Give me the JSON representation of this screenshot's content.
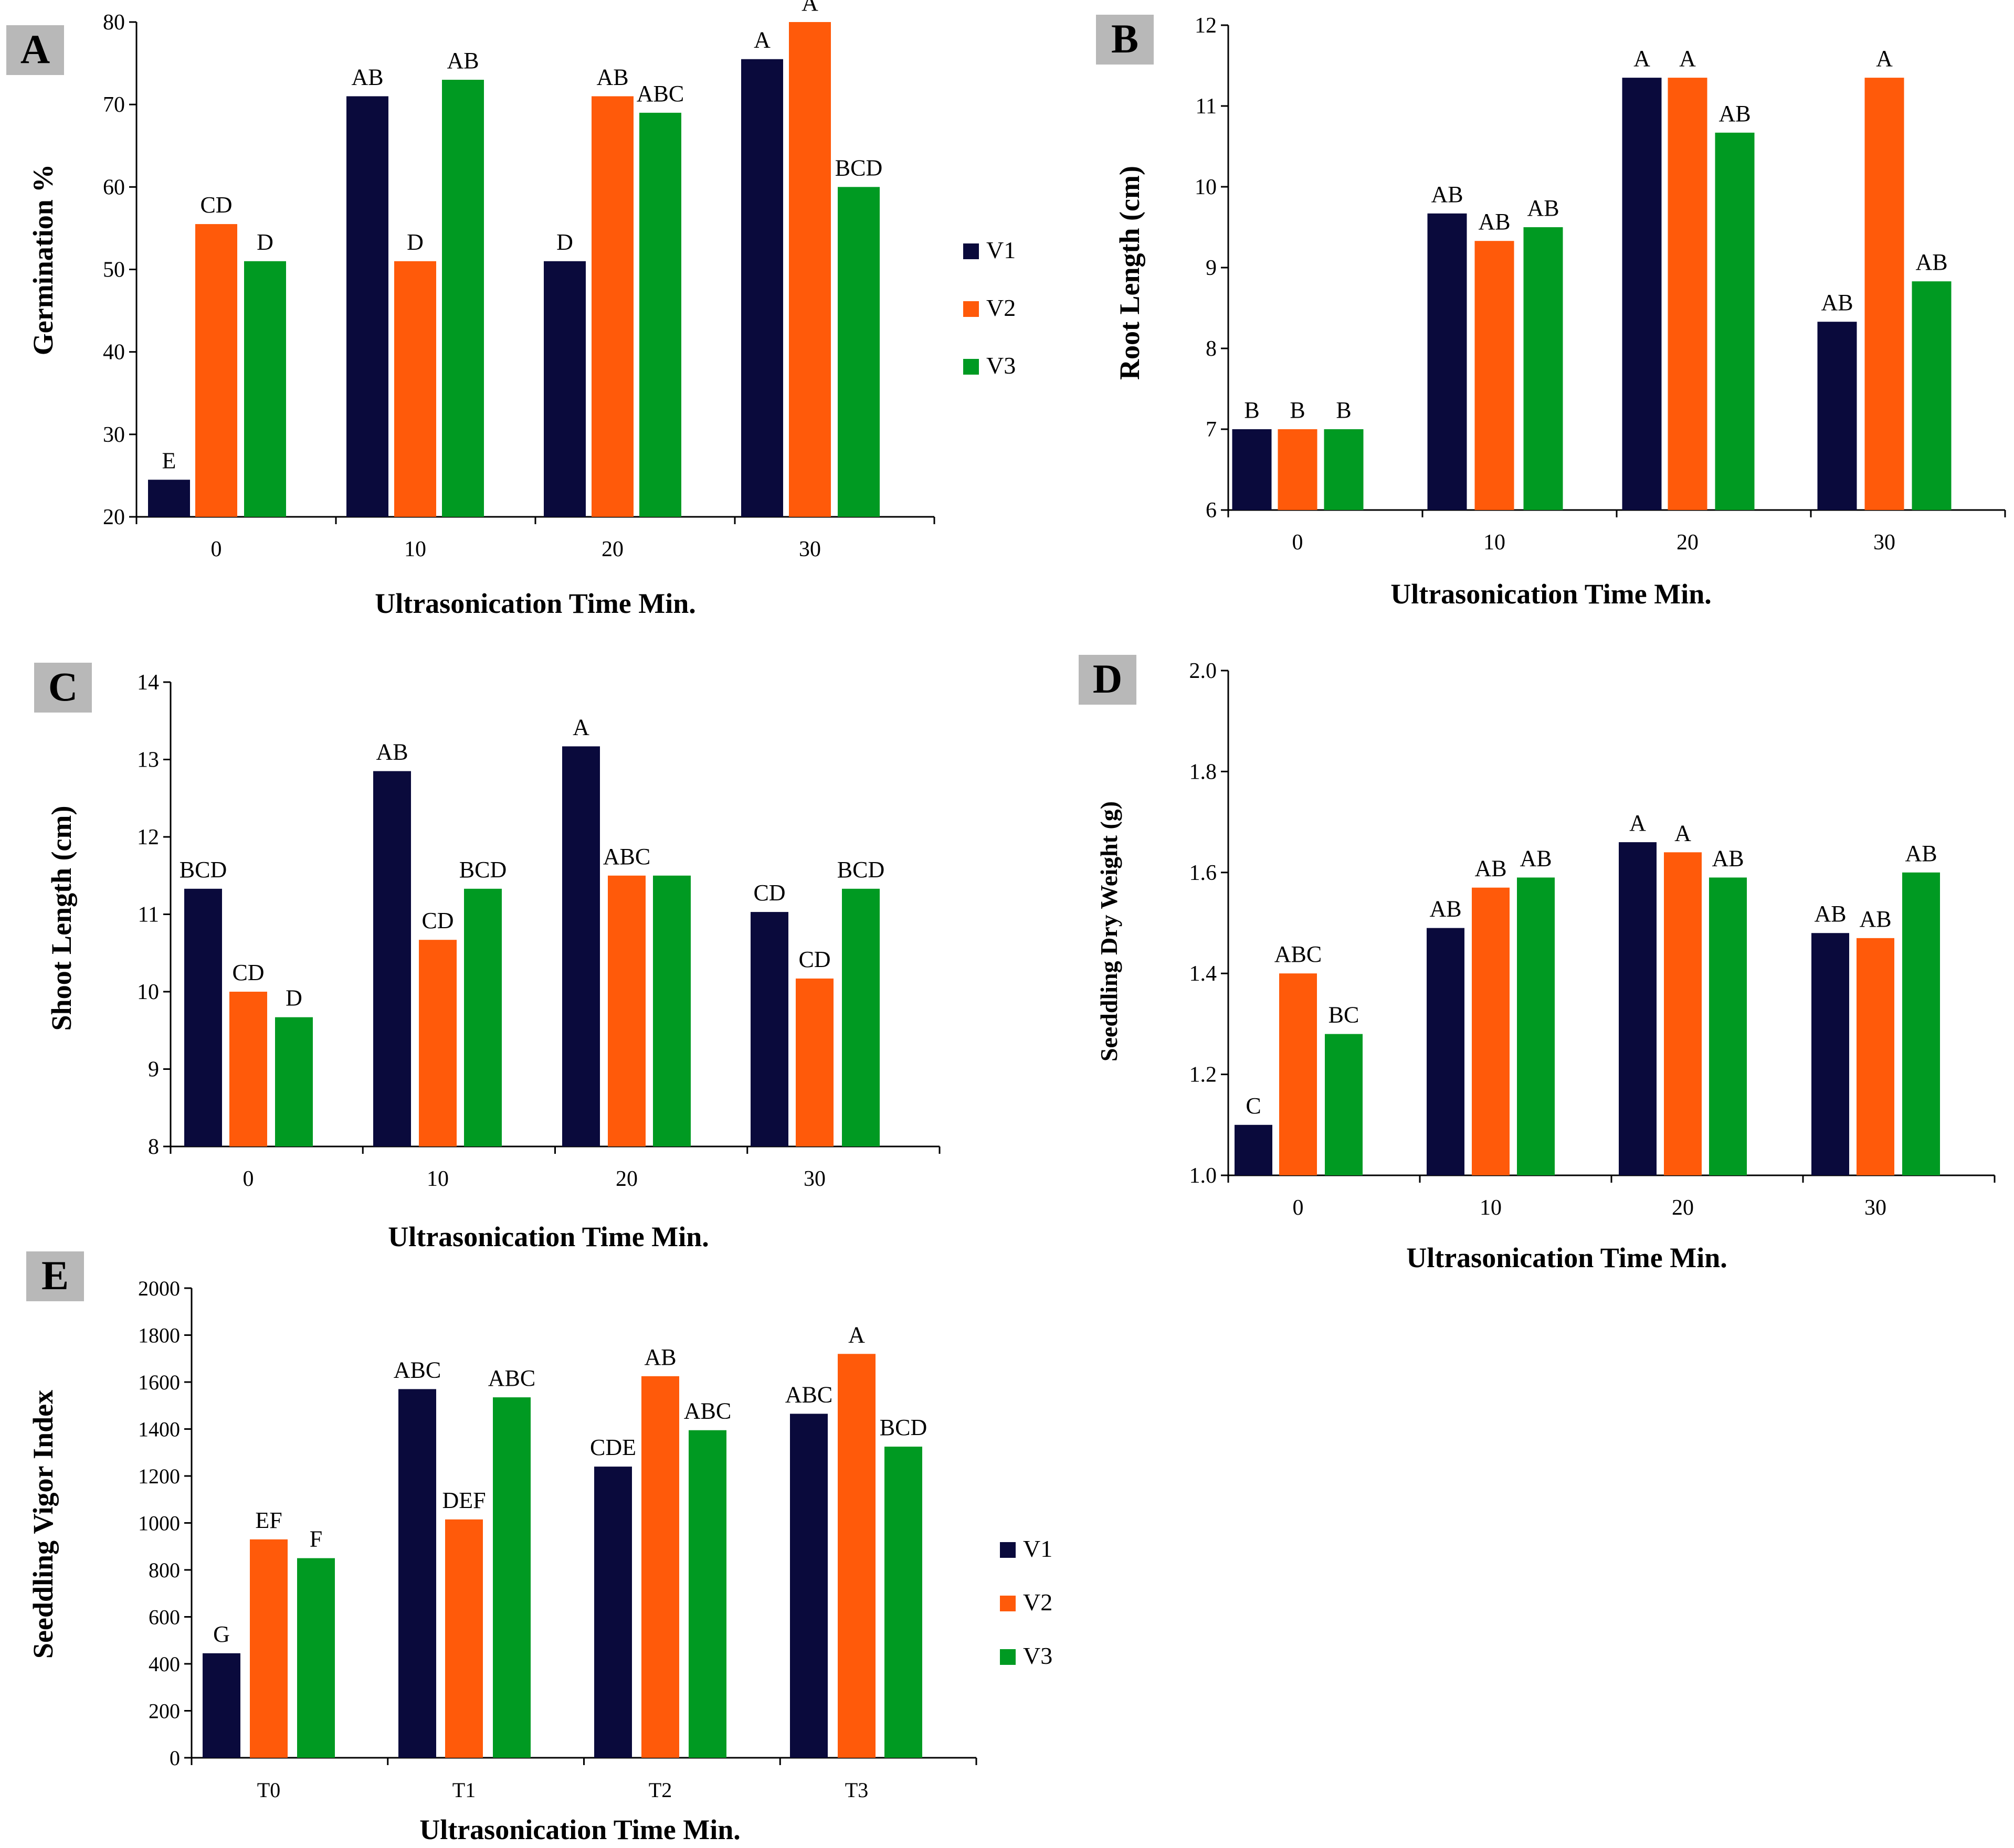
{
  "colors": {
    "V1": "#0a0a3c",
    "V2": "#ff5a0a",
    "V3": "#009a22"
  },
  "chart_data": [
    {
      "id": "A",
      "type": "bar",
      "panel_label": "A",
      "categories": [
        "0",
        "10",
        "20",
        "30"
      ],
      "series": [
        {
          "name": "V1",
          "values": [
            24.5,
            71,
            51,
            75.5
          ]
        },
        {
          "name": "V2",
          "values": [
            55.5,
            51,
            71,
            80
          ]
        },
        {
          "name": "V3",
          "values": [
            51,
            73,
            69,
            60
          ]
        }
      ],
      "labels": [
        [
          "E",
          "CD",
          "D"
        ],
        [
          "AB",
          "D",
          "AB"
        ],
        [
          "D",
          "AB",
          "ABC"
        ],
        [
          "A",
          "A",
          "BCD"
        ]
      ],
      "ylim": [
        20,
        80
      ],
      "yticks": [
        "20",
        "30",
        "40",
        "50",
        "60",
        "70",
        "80"
      ],
      "xlabel": "Ultrasonication Time Min.",
      "ylabel": "Germination %",
      "legend": [
        "V1",
        "V2",
        "V3"
      ]
    },
    {
      "id": "B",
      "type": "bar",
      "panel_label": "B",
      "categories": [
        "0",
        "10",
        "20",
        "30"
      ],
      "series": [
        {
          "name": "V1",
          "values": [
            7,
            9.67,
            11.35,
            8.33
          ]
        },
        {
          "name": "V2",
          "values": [
            7,
            9.33,
            11.35,
            11.35
          ]
        },
        {
          "name": "V3",
          "values": [
            7,
            9.5,
            10.67,
            8.83
          ]
        }
      ],
      "labels": [
        [
          "B",
          "B",
          "B"
        ],
        [
          "AB",
          "AB",
          "AB"
        ],
        [
          "A",
          "A",
          "AB"
        ],
        [
          "AB",
          "A",
          "AB"
        ]
      ],
      "ylim": [
        6,
        12
      ],
      "yticks": [
        "6",
        "7",
        "8",
        "9",
        "10",
        "11",
        "12"
      ],
      "xlabel": "Ultrasonication Time Min.",
      "ylabel": "Root Length (cm)",
      "legend": []
    },
    {
      "id": "C",
      "type": "bar",
      "panel_label": "C",
      "categories": [
        "0",
        "10",
        "20",
        "30"
      ],
      "series": [
        {
          "name": "V1",
          "values": [
            11.33,
            12.85,
            13.17,
            11.03
          ]
        },
        {
          "name": "V2",
          "values": [
            10,
            10.67,
            11.5,
            10.17
          ]
        },
        {
          "name": "V3",
          "values": [
            9.67,
            11.33,
            11.5,
            11.33
          ]
        }
      ],
      "labels": [
        [
          "BCD",
          "CD",
          "D"
        ],
        [
          "AB",
          "CD",
          "BCD"
        ],
        [
          "A",
          "ABC",
          ""
        ],
        [
          "CD",
          "CD",
          "BCD"
        ]
      ],
      "ylim": [
        8,
        14
      ],
      "yticks": [
        "8",
        "9",
        "10",
        "11",
        "12",
        "13",
        "14"
      ],
      "xlabel": "Ultrasonication Time Min.",
      "ylabel": "Shoot Length (cm)",
      "legend": []
    },
    {
      "id": "D",
      "type": "bar",
      "panel_label": "D",
      "categories": [
        "0",
        "10",
        "20",
        "30"
      ],
      "series": [
        {
          "name": "V1",
          "values": [
            1.1,
            1.49,
            1.66,
            1.48
          ]
        },
        {
          "name": "V2",
          "values": [
            1.4,
            1.57,
            1.64,
            1.47
          ]
        },
        {
          "name": "V3",
          "values": [
            1.28,
            1.59,
            1.59,
            1.6
          ]
        }
      ],
      "labels": [
        [
          "C",
          "ABC",
          "BC"
        ],
        [
          "AB",
          "AB",
          "AB"
        ],
        [
          "A",
          "A",
          "AB"
        ],
        [
          "AB",
          "AB",
          "AB"
        ]
      ],
      "ylim": [
        1.0,
        2.0
      ],
      "yticks": [
        "1.0",
        "1.2",
        "1.4",
        "1.6",
        "1.8",
        "2.0"
      ],
      "xlabel": "Ultrasonication Time Min.",
      "ylabel": "Seeddling Dry Weight (g)",
      "legend": []
    },
    {
      "id": "E",
      "type": "bar",
      "panel_label": "E",
      "categories": [
        "T0",
        "T1",
        "T2",
        "T3"
      ],
      "series": [
        {
          "name": "V1",
          "values": [
            445,
            1570,
            1240,
            1465
          ]
        },
        {
          "name": "V2",
          "values": [
            930,
            1015,
            1625,
            1720
          ]
        },
        {
          "name": "V3",
          "values": [
            850,
            1535,
            1395,
            1325
          ]
        }
      ],
      "labels": [
        [
          "G",
          "EF",
          "F"
        ],
        [
          "ABC",
          "DEF",
          "ABC"
        ],
        [
          "CDE",
          "AB",
          "ABC"
        ],
        [
          "ABC",
          "A",
          "BCD"
        ]
      ],
      "ylim": [
        0,
        2000
      ],
      "yticks": [
        "0",
        "200",
        "400",
        "600",
        "800",
        "1000",
        "1200",
        "1400",
        "1600",
        "1800",
        "2000"
      ],
      "xlabel": "Ultrasonication Time Min.",
      "ylabel": "Seeddling Vigor Index",
      "legend": [
        "V1",
        "V2",
        "V3"
      ]
    }
  ]
}
